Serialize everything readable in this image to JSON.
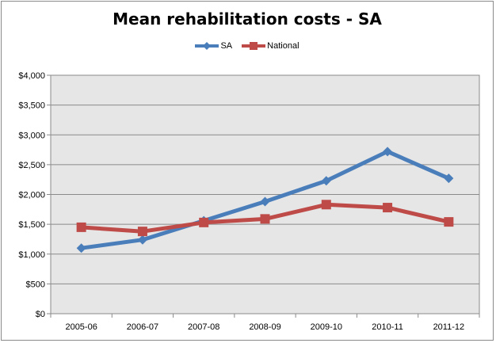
{
  "chart_data": {
    "type": "line",
    "title": "Mean rehabilitation costs - SA",
    "categories": [
      "2005-06",
      "2006-07",
      "2007-08",
      "2008-09",
      "2009-10",
      "2010-11",
      "2011-12"
    ],
    "series": [
      {
        "name": "SA",
        "values": [
          1100,
          1240,
          1560,
          1880,
          2230,
          2720,
          2270
        ],
        "color": "#4a7ebb",
        "marker": "diamond"
      },
      {
        "name": "National",
        "values": [
          1450,
          1380,
          1530,
          1590,
          1830,
          1780,
          1540
        ],
        "color": "#be4b48",
        "marker": "square"
      }
    ],
    "y_ticks": [
      "$0",
      "$500",
      "$1,000",
      "$1,500",
      "$2,000",
      "$2,500",
      "$3,000",
      "$3,500",
      "$4,000"
    ],
    "ylim": [
      0,
      4000
    ],
    "ystep": 500,
    "grid": true,
    "legend_position": "top",
    "plot_background": "#e6e6e6",
    "gridline_color": "#8a8a8a"
  }
}
